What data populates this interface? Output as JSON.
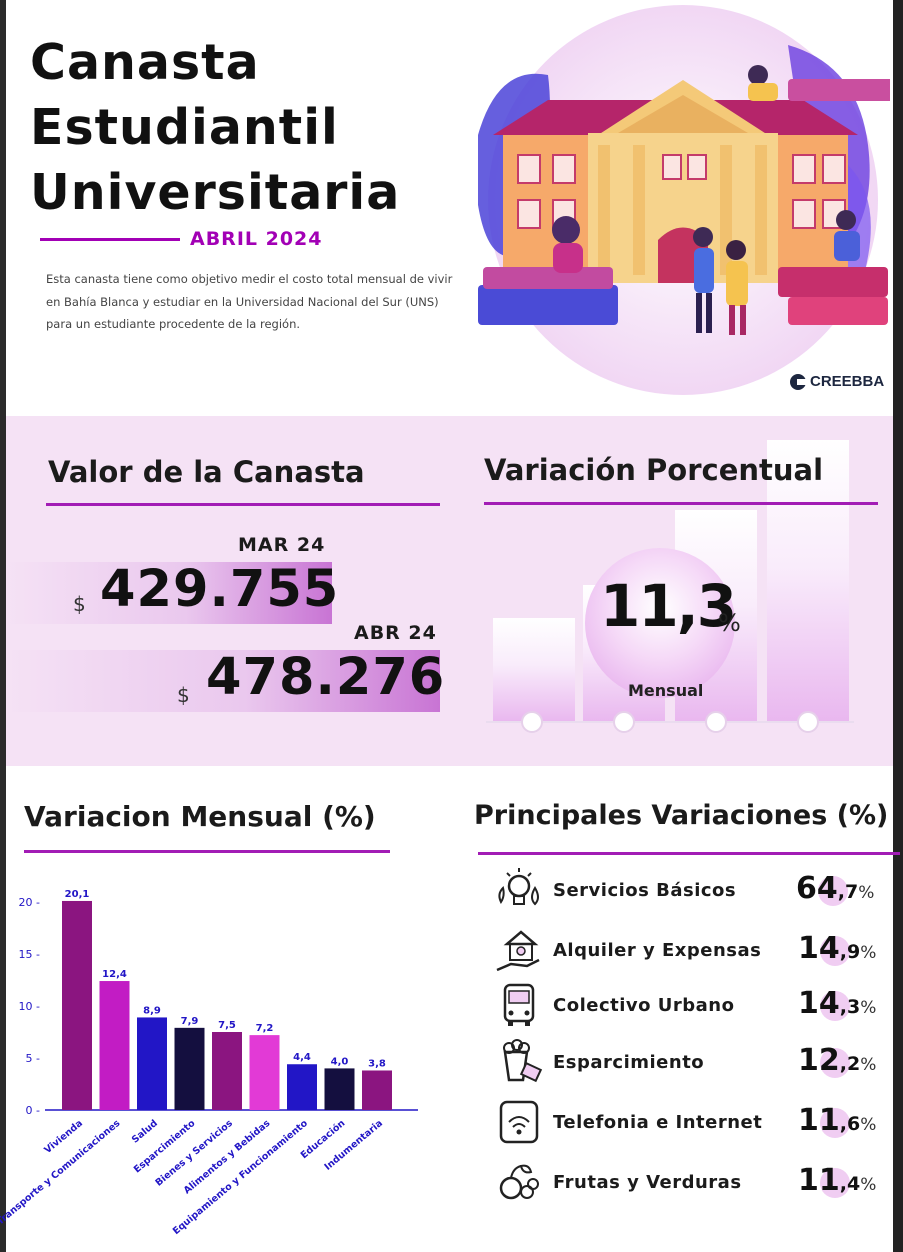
{
  "header": {
    "title_lines": [
      "Canasta",
      "Estudiantil",
      "Universitaria"
    ],
    "date": "ABRIL 2024",
    "intro": "Esta canasta tiene como objetivo medir el costo total mensual de vivir en Bahía Blanca y estudiar en la Universidad Nacional del Sur (UNS) para un estudiante procedente de la región.",
    "logo": "CREEBBA"
  },
  "valor": {
    "heading": "Valor de la Canasta",
    "currency": "$",
    "prev_label": "MAR 24",
    "prev_value": "429.755",
    "curr_label": "ABR 24",
    "curr_value": "478.276"
  },
  "variacion": {
    "heading": "Variación Porcentual",
    "value": "11,3",
    "unit": "%",
    "label": "Mensual"
  },
  "colors": {
    "accent": "#a21cb5",
    "band": "#f5e2f5",
    "dark_purple": "#8b1580",
    "magenta": "#c21cc4",
    "blue": "#2216c6",
    "navy": "#140f3f",
    "pink": "#e23ad6"
  },
  "chart_data": {
    "type": "bar",
    "title": "Variacion Mensual (%)",
    "categories": [
      "Vivienda",
      "Transporte y Comunicaciones",
      "Salud",
      "Esparcimiento",
      "Bienes y Servicios",
      "Alimentos y Bebidas",
      "Equipamiento y Funcionamiento",
      "Educación",
      "Indumentaria"
    ],
    "values": [
      20.1,
      12.4,
      8.9,
      7.9,
      7.5,
      7.2,
      4.4,
      4.0,
      3.8
    ],
    "value_labels": [
      "20,1",
      "12,4",
      "8,9",
      "7,9",
      "7,5",
      "7,2",
      "4,4",
      "4,0",
      "3,8"
    ],
    "bar_colors": [
      "#8b1580",
      "#c21cc4",
      "#2216c6",
      "#140f3f",
      "#8b1580",
      "#e23ad6",
      "#2216c6",
      "#140f3f",
      "#8b1580"
    ],
    "ylim": [
      0,
      20
    ],
    "yticks": [
      0,
      5,
      10,
      15,
      20
    ],
    "ytick_labels": [
      "0 -",
      "5 -",
      "10 -",
      "15 -",
      "20 -"
    ],
    "grid": false
  },
  "principales": {
    "heading": "Principales Variaciones (%)",
    "items": [
      {
        "label": "Servicios Básicos",
        "int": "64",
        "dec": ",7",
        "pct": "%",
        "icon": "utilities-icon"
      },
      {
        "label": "Alquiler y Expensas",
        "int": "14",
        "dec": ",9",
        "pct": "%",
        "icon": "house-hand-icon"
      },
      {
        "label": "Colectivo Urbano",
        "int": "14",
        "dec": ",3",
        "pct": "%",
        "icon": "bus-icon"
      },
      {
        "label": "Esparcimiento",
        "int": "12",
        "dec": ",2",
        "pct": "%",
        "icon": "popcorn-ticket-icon"
      },
      {
        "label": "Telefonia e Internet",
        "int": "11",
        "dec": ",6",
        "pct": "%",
        "icon": "phone-wifi-icon"
      },
      {
        "label": "Frutas y Verduras",
        "int": "11",
        "dec": ",4",
        "pct": "%",
        "icon": "fruits-icon"
      }
    ]
  }
}
